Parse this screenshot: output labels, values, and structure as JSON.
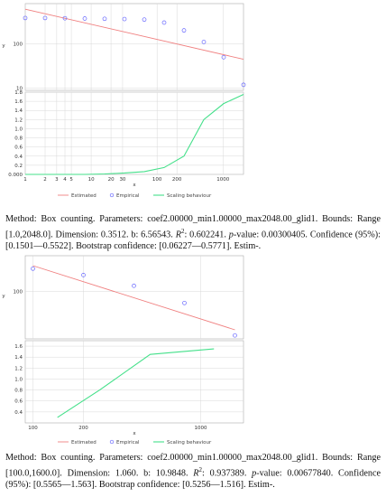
{
  "colors": {
    "estimated": "#f08080",
    "empirical": "#6666ff",
    "scaling": "#44e08a",
    "grid": "#d8d8d8",
    "panel_border": "#aaaaaa"
  },
  "chart_data": [
    {
      "type": "scatter",
      "xscale": "log",
      "yscale": "log",
      "xlabel": "x",
      "ylabel": "y",
      "x_ticks": [
        "1",
        "2",
        "3",
        "4",
        "5",
        "10",
        "20",
        "30",
        "100",
        "200",
        "1000"
      ],
      "y_ticks_top": [
        "100",
        "10"
      ],
      "y_ticks_bottom": [
        "1.8",
        "1.6",
        "1.4",
        "1.2",
        "1.0",
        "0.8",
        "0.6",
        "0.4",
        "0.2",
        "0.000"
      ],
      "xlim": [
        1,
        2048
      ],
      "ylim_top": [
        9,
        800
      ],
      "ylim_bottom": [
        0,
        1.8
      ],
      "empirical": {
        "x": [
          1,
          2,
          4,
          8,
          16,
          32,
          64,
          128,
          256,
          512,
          1024,
          2048
        ],
        "y": [
          380,
          380,
          375,
          370,
          365,
          360,
          350,
          300,
          200,
          110,
          50,
          12
        ]
      },
      "estimated": {
        "x": [
          1,
          2048
        ],
        "y": [
          600,
          45
        ]
      },
      "scaling": {
        "x": [
          1,
          2,
          4,
          8,
          16,
          32,
          64,
          128,
          256,
          512,
          1024,
          2048
        ],
        "y": [
          0,
          0,
          0,
          0,
          0.01,
          0.03,
          0.06,
          0.15,
          0.4,
          1.2,
          1.55,
          1.75
        ]
      },
      "legend": [
        "Estimated",
        "Empirical",
        "Scaling behaviour"
      ]
    },
    {
      "type": "scatter",
      "xscale": "log",
      "yscale": "log",
      "xlabel": "x",
      "ylabel": "y",
      "x_ticks": [
        "100",
        "200",
        "1000"
      ],
      "y_ticks_top": [
        "100"
      ],
      "y_ticks_bottom": [
        "1.6",
        "1.4",
        "1.2",
        "1.0",
        "0.8",
        "0.6",
        "0.4"
      ],
      "xlim": [
        90,
        1800
      ],
      "ylim_top": [
        12,
        500
      ],
      "ylim_bottom": [
        0.2,
        1.7
      ],
      "empirical": {
        "x": [
          100,
          200,
          400,
          800,
          1600
        ],
        "y": [
          280,
          210,
          130,
          60,
          14
        ]
      },
      "estimated": {
        "x": [
          100,
          1600
        ],
        "y": [
          320,
          18
        ]
      },
      "scaling": {
        "x": [
          140,
          250,
          500,
          1200
        ],
        "y": [
          0.3,
          0.8,
          1.45,
          1.55
        ]
      },
      "legend": [
        "Estimated",
        "Empirical",
        "Scaling behaviour"
      ]
    }
  ],
  "captions": [
    {
      "pre": "Method: Box counting. Parameters: coef2.00000_min1.00000_max2048.00_glid1. Bounds: Range [1.0,2048.0]. Dimension: 0.3512. b: 6.56543. ",
      "r2_label": "R",
      "r2_rest": ": 0.602241. ",
      "pvalue_label": "p",
      "post": "-value: 0.00300405. Confidence (95%): [0.1501—0.5522]. Bootstrap confidence: [0.06227—0.5771]. Estim-."
    },
    {
      "pre": "Method: Box counting. Parameters: coef2.00000_min1.00000_max2048.00_glid1. Bounds: Range [100.0,1600.0]. Dimension: 1.060. b: 10.9848. ",
      "r2_label": "R",
      "r2_rest": ": 0.937389. ",
      "pvalue_label": "p",
      "post": "-value: 0.00677840. Confidence (95%): [0.5565—1.563]. Bootstrap confidence: [0.5256—1.516]. Estim-."
    }
  ]
}
